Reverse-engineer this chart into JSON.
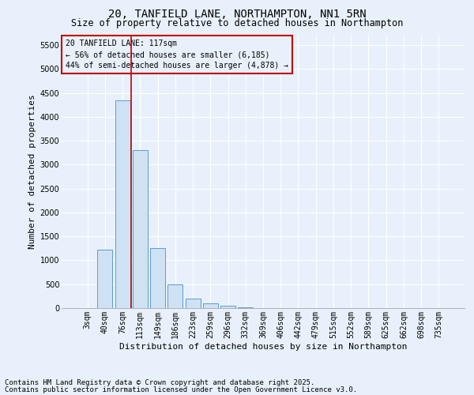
{
  "title1": "20, TANFIELD LANE, NORTHAMPTON, NN1 5RN",
  "title2": "Size of property relative to detached houses in Northampton",
  "xlabel": "Distribution of detached houses by size in Northampton",
  "ylabel": "Number of detached properties",
  "bar_labels": [
    "3sqm",
    "40sqm",
    "76sqm",
    "113sqm",
    "149sqm",
    "186sqm",
    "223sqm",
    "259sqm",
    "296sqm",
    "332sqm",
    "369sqm",
    "406sqm",
    "442sqm",
    "479sqm",
    "515sqm",
    "552sqm",
    "589sqm",
    "625sqm",
    "662sqm",
    "698sqm",
    "735sqm"
  ],
  "bar_values": [
    0,
    1220,
    4350,
    3300,
    1250,
    500,
    200,
    100,
    50,
    20,
    0,
    0,
    0,
    0,
    0,
    0,
    0,
    0,
    0,
    0,
    0
  ],
  "bar_color": "#cfe2f3",
  "bar_edge_color": "#5b9bd5",
  "vline_x": 2.5,
  "vline_color": "#c00000",
  "ylim": [
    0,
    5700
  ],
  "yticks": [
    0,
    500,
    1000,
    1500,
    2000,
    2500,
    3000,
    3500,
    4000,
    4500,
    5000,
    5500
  ],
  "annotation_title": "20 TANFIELD LANE: 117sqm",
  "annotation_line1": "← 56% of detached houses are smaller (6,185)",
  "annotation_line2": "44% of semi-detached houses are larger (4,878) →",
  "annotation_box_color": "#c00000",
  "footer1": "Contains HM Land Registry data © Crown copyright and database right 2025.",
  "footer2": "Contains public sector information licensed under the Open Government Licence v3.0.",
  "bg_color": "#e8f1fb",
  "plot_bg_color": "#e8f1fb",
  "grid_color": "#ffffff",
  "title_fontsize": 10,
  "subtitle_fontsize": 8.5,
  "axis_label_fontsize": 8,
  "tick_fontsize": 7,
  "footer_fontsize": 6.5,
  "annot_fontsize": 7
}
